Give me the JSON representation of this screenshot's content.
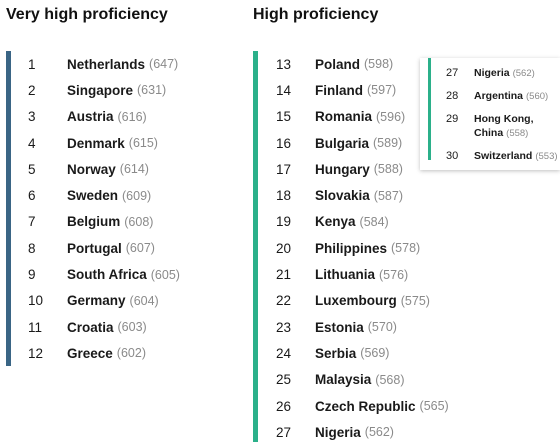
{
  "colors": {
    "very_high_bar": "#3a6585",
    "high_bar": "#2bb08a"
  },
  "very_high": {
    "title": "Very high proficiency",
    "rows": [
      {
        "rank": "1",
        "country": "Netherlands",
        "score": "(647)"
      },
      {
        "rank": "2",
        "country": "Singapore",
        "score": "(631)"
      },
      {
        "rank": "3",
        "country": "Austria",
        "score": "(616)"
      },
      {
        "rank": "4",
        "country": "Denmark",
        "score": "(615)"
      },
      {
        "rank": "5",
        "country": "Norway",
        "score": "(614)"
      },
      {
        "rank": "6",
        "country": "Sweden",
        "score": "(609)"
      },
      {
        "rank": "7",
        "country": "Belgium",
        "score": "(608)"
      },
      {
        "rank": "8",
        "country": "Portugal",
        "score": "(607)"
      },
      {
        "rank": "9",
        "country": "South Africa",
        "score": "(605)"
      },
      {
        "rank": "10",
        "country": "Germany",
        "score": "(604)"
      },
      {
        "rank": "11",
        "country": "Croatia",
        "score": "(603)"
      },
      {
        "rank": "12",
        "country": "Greece",
        "score": "(602)"
      }
    ]
  },
  "high": {
    "title": "High proficiency",
    "rows": [
      {
        "rank": "13",
        "country": "Poland",
        "score": "(598)"
      },
      {
        "rank": "14",
        "country": "Finland",
        "score": "(597)"
      },
      {
        "rank": "15",
        "country": "Romania",
        "score": "(596)"
      },
      {
        "rank": "16",
        "country": "Bulgaria",
        "score": "(589)"
      },
      {
        "rank": "17",
        "country": "Hungary",
        "score": "(588)"
      },
      {
        "rank": "18",
        "country": "Slovakia",
        "score": "(587)"
      },
      {
        "rank": "19",
        "country": "Kenya",
        "score": "(584)"
      },
      {
        "rank": "20",
        "country": "Philippines",
        "score": "(578)"
      },
      {
        "rank": "21",
        "country": "Lithuania",
        "score": "(576)"
      },
      {
        "rank": "22",
        "country": "Luxembourg",
        "score": "(575)"
      },
      {
        "rank": "23",
        "country": "Estonia",
        "score": "(570)"
      },
      {
        "rank": "24",
        "country": "Serbia",
        "score": "(569)"
      },
      {
        "rank": "25",
        "country": "Malaysia",
        "score": "(568)"
      },
      {
        "rank": "26",
        "country": "Czech Republic",
        "score": "(565)"
      },
      {
        "rank": "27",
        "country": "Nigeria",
        "score": "(562)"
      }
    ]
  },
  "inset": {
    "rows": [
      {
        "rank": "27",
        "country": "Nigeria",
        "score": "(562)"
      },
      {
        "rank": "28",
        "country": "Argentina",
        "score": "(560)"
      },
      {
        "rank": "29",
        "country": "Hong Kong,",
        "country_line2": "China",
        "score": "(558)"
      },
      {
        "rank": "30",
        "country": "Switzerland",
        "score": "(553)"
      }
    ]
  }
}
